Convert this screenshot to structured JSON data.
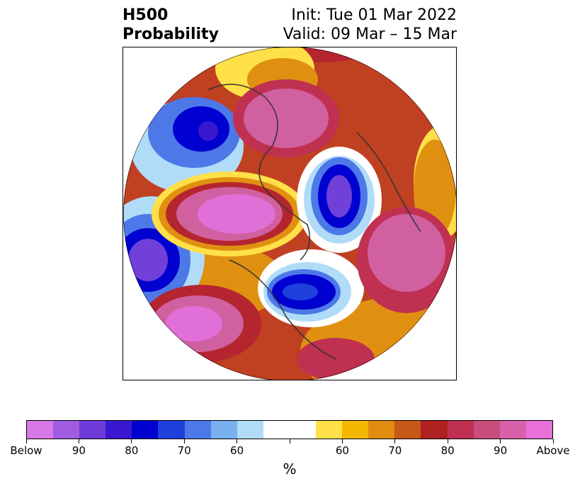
{
  "title": {
    "line1": "H500",
    "line2": "Probability",
    "init": "Init: Tue 01 Mar 2022",
    "valid": "Valid: 09 Mar – 15 Mar"
  },
  "colorbar": {
    "colors": [
      "#d878e8",
      "#a05ce0",
      "#6e3ad8",
      "#3a18d0",
      "#0000d0",
      "#2040dc",
      "#4c78e8",
      "#78b0f0",
      "#b0dcf8",
      "#ffffff",
      "#ffffff",
      "#ffe048",
      "#f4b800",
      "#e08c10",
      "#c85818",
      "#b02020",
      "#c03050",
      "#c84c7c",
      "#d860a8",
      "#e870d8"
    ],
    "tick_labels": [
      "Below",
      "90",
      "80",
      "70",
      "60",
      "",
      "60",
      "70",
      "80",
      "90",
      "Above"
    ],
    "units": "%"
  },
  "map": {
    "projection": "north-polar-stereographic",
    "field": "500-hPa height anomaly probability",
    "palette": {
      "above_strong": "#e070d8",
      "above_high": "#d060a0",
      "above_mid": "#b52530",
      "above_low": "#e09010",
      "above_weak": "#ffe048",
      "below_weak": "#b0dcf8",
      "below_low": "#4c78e8",
      "below_mid": "#0000d0",
      "below_strong": "#7040d8",
      "coastline": "#333333"
    }
  }
}
